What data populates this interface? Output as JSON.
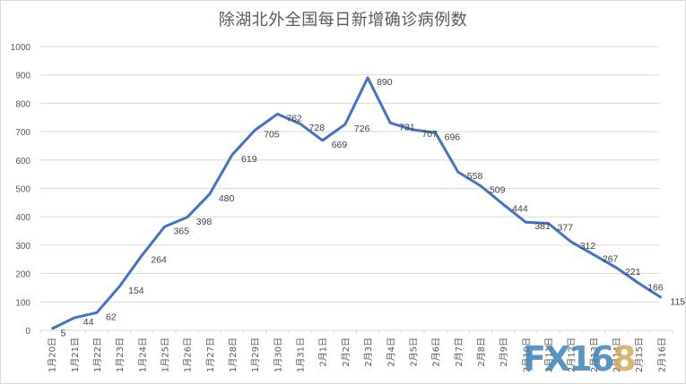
{
  "chart_data": {
    "type": "line",
    "title": "除湖北外全国每日新增确诊病例数",
    "xlabel": "",
    "ylabel": "",
    "ylim": [
      0,
      1000
    ],
    "yticks": [
      0,
      100,
      200,
      300,
      400,
      500,
      600,
      700,
      800,
      900,
      1000
    ],
    "grid": true,
    "legend": null,
    "categories": [
      "1月20日",
      "1月21日",
      "1月22日",
      "1月23日",
      "1月24日",
      "1月25日",
      "1月26日",
      "1月27日",
      "1月28日",
      "1月29日",
      "1月30日",
      "1月31日",
      "2月1日",
      "2月2日",
      "2月3日",
      "2月4日",
      "2月5日",
      "2月6日",
      "2月7日",
      "2月8日",
      "2月9日",
      "2月10日",
      "2月11日",
      "2月12日",
      "2月13日",
      "2月14日",
      "2月15日",
      "2月16日"
    ],
    "series": [
      {
        "name": "每日新增确诊病例数",
        "color": "#4472c4",
        "values": [
          5,
          44,
          62,
          154,
          264,
          365,
          398,
          480,
          619,
          705,
          762,
          728,
          669,
          726,
          890,
          731,
          707,
          696,
          558,
          509,
          444,
          381,
          377,
          312,
          267,
          221,
          166,
          115
        ]
      }
    ]
  },
  "watermark": {
    "text_main": "FX16",
    "text_accent": "8",
    "main_color": "#3d86b8",
    "accent_color": "#d2ab5a"
  },
  "colors": {
    "line": "#4472c4",
    "grid": "#d9d9d9",
    "text": "#595959"
  }
}
